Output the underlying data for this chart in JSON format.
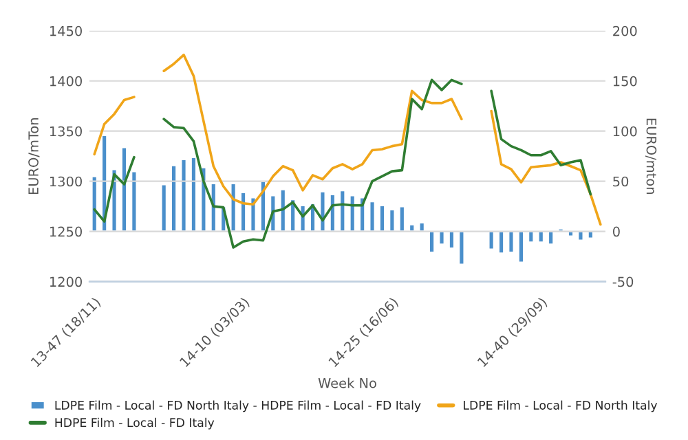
{
  "chart_data": {
    "type": "line",
    "xlabel": "Week No",
    "ylabel": "EURO/mTon",
    "y2label": "EURO/mton",
    "categories": [
      "13-47 (18/11)",
      null,
      null,
      null,
      null,
      null,
      null,
      null,
      null,
      null,
      null,
      null,
      null,
      null,
      null,
      "14-10 (03/03)",
      null,
      null,
      null,
      null,
      null,
      null,
      null,
      null,
      null,
      null,
      null,
      null,
      null,
      null,
      "14-25 (16/06)",
      null,
      null,
      null,
      null,
      null,
      null,
      null,
      null,
      null,
      null,
      null,
      null,
      null,
      null,
      "14-40 (29/09)",
      null,
      null,
      null,
      null,
      null,
      null
    ],
    "series": [
      {
        "name": "LDPE Film - Local - FD North Italy - HDPE Film - Local - FD Italy",
        "type": "bar",
        "axis": "y2",
        "color": "#4a8fcb",
        "values": [
          55,
          96,
          62,
          84,
          60,
          null,
          null,
          47,
          66,
          72,
          74,
          64,
          48,
          25,
          48,
          39,
          34,
          50,
          36,
          42,
          32,
          26,
          28,
          40,
          37,
          41,
          36,
          34,
          30,
          26,
          22,
          25,
          7,
          9,
          -21,
          -13,
          -17,
          -33,
          null,
          null,
          -18,
          -22,
          -21,
          -31,
          -11,
          -11,
          -13,
          3,
          -5,
          -9,
          -7,
          null
        ]
      },
      {
        "name": "LDPE Film - Local - FD North Italy",
        "axis": "y",
        "color": "#f0a519",
        "values": [
          1327,
          1357,
          1367,
          1381,
          1384,
          null,
          null,
          1410,
          1417,
          1426,
          1405,
          1360,
          1315,
          1295,
          1282,
          1278,
          1277,
          1290,
          1305,
          1315,
          1311,
          1291,
          1306,
          1302,
          1313,
          1317,
          1312,
          1317,
          1331,
          1332,
          1335,
          1337,
          1390,
          1381,
          1378,
          1378,
          1382,
          1362,
          null,
          null,
          1370,
          1317,
          1312,
          1299,
          1314,
          1315,
          1316,
          1319,
          1315,
          1311,
          1287,
          1257
        ]
      },
      {
        "name": "HDPE Film - Local - FD Italy",
        "axis": "y",
        "color": "#2f7d32",
        "values": [
          1272,
          1260,
          1307,
          1297,
          1324,
          null,
          null,
          1362,
          1354,
          1353,
          1340,
          1300,
          1275,
          1274,
          1234,
          1240,
          1242,
          1241,
          1270,
          1272,
          1279,
          1265,
          1276,
          1261,
          1276,
          1277,
          1276,
          1276,
          1300,
          1305,
          1310,
          1311,
          1382,
          1372,
          1401,
          1391,
          1401,
          1397,
          null,
          null,
          1390,
          1342,
          1335,
          1331,
          1326,
          1326,
          1330,
          1316,
          1319,
          1321,
          1287,
          null
        ]
      }
    ],
    "ylim": [
      1200,
      1450
    ],
    "yticks": [
      1200,
      1250,
      1300,
      1350,
      1400,
      1450
    ],
    "y2lim": [
      -50,
      200
    ],
    "y2ticks": [
      -50,
      0,
      50,
      100,
      150,
      200
    ],
    "grid": "y",
    "legend": "bottom"
  }
}
